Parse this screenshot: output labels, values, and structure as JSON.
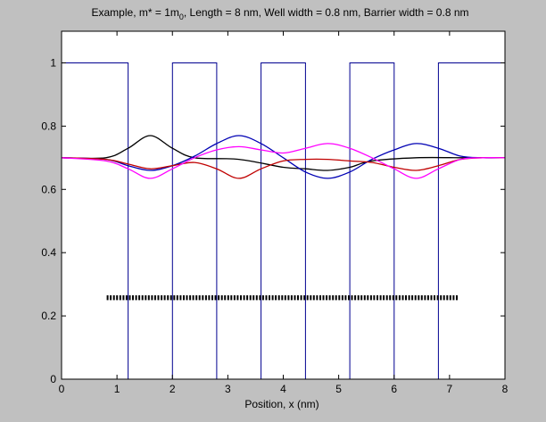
{
  "colors": {
    "figure_bg": "#c0c0c0",
    "axes_bg": "#ffffff",
    "axis": "#000000",
    "potential": "#000090",
    "dots": "#000000"
  },
  "chart_data": {
    "type": "line",
    "title": {
      "prefix": "Example, m* = 1m",
      "subscript": "0",
      "suffix": ", Length = 8 nm, Well width = 0.8 nm, Barrier width = 0.8 nm"
    },
    "xlabel": "Position, x (nm)",
    "ylabel": "",
    "xlim": [
      0,
      8
    ],
    "ylim": [
      0,
      1.1
    ],
    "xticks": [
      0,
      1,
      2,
      3,
      4,
      5,
      6,
      7,
      8
    ],
    "xtick_labels": [
      "0",
      "1",
      "2",
      "3",
      "4",
      "5",
      "6",
      "7",
      "8"
    ],
    "yticks": [
      0,
      0.2,
      0.4,
      0.6,
      0.8,
      1
    ],
    "ytick_labels": [
      "0",
      "0.2",
      "0.4",
      "0.6",
      "0.8",
      "1"
    ],
    "grid": false,
    "legend": null,
    "potential": {
      "color": "#000090",
      "x": [
        0,
        1.2,
        1.2,
        2.0,
        2.0,
        2.8,
        2.8,
        3.6,
        3.6,
        4.4,
        4.4,
        5.2,
        5.2,
        6.0,
        6.0,
        6.8,
        6.8,
        8.0
      ],
      "y": [
        1,
        1,
        0,
        0,
        1,
        1,
        0,
        0,
        1,
        1,
        0,
        0,
        1,
        1,
        0,
        0,
        1,
        1
      ]
    },
    "series": [
      {
        "color": "#000000",
        "x": [
          0,
          0.8,
          1.2,
          1.6,
          2.0,
          2.4,
          3.2,
          4.0,
          4.4,
          4.8,
          5.2,
          5.6,
          6.4,
          7.2,
          7.6,
          8.0
        ],
        "y": [
          0.7,
          0.7,
          0.73,
          0.77,
          0.73,
          0.7,
          0.695,
          0.67,
          0.665,
          0.66,
          0.67,
          0.69,
          0.7,
          0.7,
          0.7,
          0.7
        ]
      },
      {
        "color": "#0000b4",
        "x": [
          0,
          0.8,
          1.2,
          1.6,
          2.0,
          2.4,
          2.8,
          3.2,
          3.6,
          4.0,
          4.4,
          4.8,
          5.2,
          5.6,
          6.0,
          6.4,
          6.8,
          7.2,
          7.6,
          8.0
        ],
        "y": [
          0.7,
          0.695,
          0.675,
          0.66,
          0.675,
          0.705,
          0.745,
          0.77,
          0.745,
          0.7,
          0.655,
          0.635,
          0.655,
          0.695,
          0.725,
          0.745,
          0.73,
          0.705,
          0.7,
          0.7
        ]
      },
      {
        "color": "#c00000",
        "x": [
          0,
          0.8,
          1.2,
          1.6,
          2.0,
          2.4,
          2.8,
          3.2,
          3.6,
          4.0,
          4.4,
          4.8,
          5.2,
          5.6,
          6.0,
          6.4,
          6.8,
          7.2,
          7.6,
          8.0
        ],
        "y": [
          0.7,
          0.695,
          0.68,
          0.665,
          0.675,
          0.685,
          0.665,
          0.635,
          0.665,
          0.69,
          0.695,
          0.695,
          0.69,
          0.685,
          0.67,
          0.66,
          0.675,
          0.695,
          0.7,
          0.7
        ]
      },
      {
        "color": "#ff00ff",
        "x": [
          0,
          0.8,
          1.2,
          1.6,
          2.0,
          2.4,
          2.8,
          3.2,
          3.6,
          4.0,
          4.4,
          4.8,
          5.2,
          5.6,
          6.0,
          6.4,
          6.8,
          7.2,
          7.6,
          8.0
        ],
        "y": [
          0.7,
          0.69,
          0.665,
          0.635,
          0.665,
          0.7,
          0.725,
          0.735,
          0.725,
          0.715,
          0.73,
          0.745,
          0.73,
          0.7,
          0.665,
          0.635,
          0.665,
          0.695,
          0.7,
          0.7
        ]
      }
    ],
    "markers": {
      "color": "#000000",
      "x_start": 0.83,
      "x_end": 7.13,
      "count": 111,
      "y_low": 0.25,
      "y_high": 0.265
    }
  }
}
